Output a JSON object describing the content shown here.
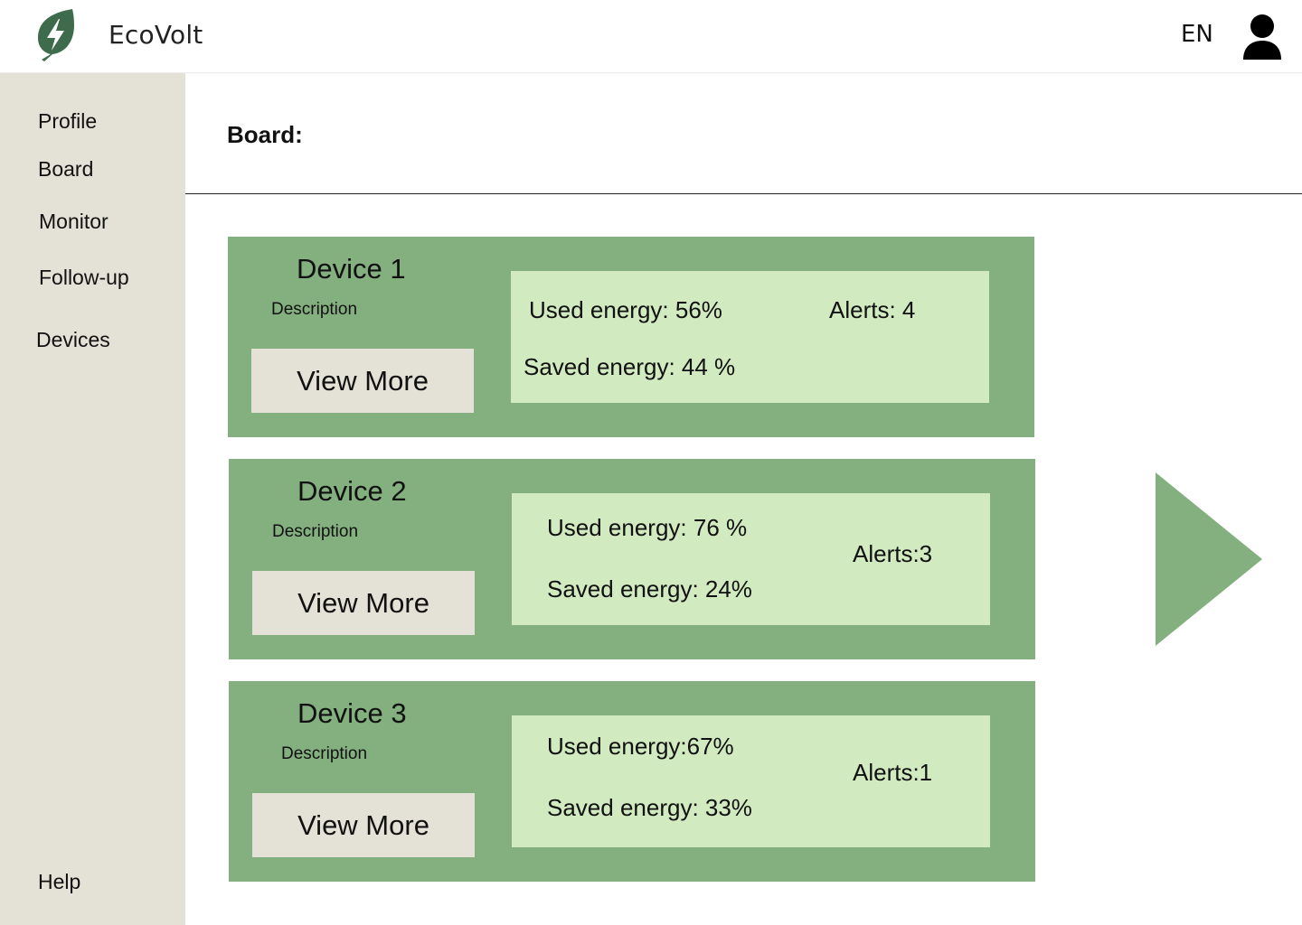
{
  "header": {
    "brand": "EcoVolt",
    "language": "EN",
    "logo_icon": "leaf-bolt-icon",
    "user_icon": "user-icon"
  },
  "sidebar": {
    "items": [
      {
        "label": "Profile"
      },
      {
        "label": "Board"
      },
      {
        "label": "Monitor"
      },
      {
        "label": "Follow-up"
      },
      {
        "label": "Devices"
      }
    ],
    "help": "Help"
  },
  "main": {
    "title": "Board:",
    "devices": [
      {
        "name": "Device 1",
        "description": "Description",
        "button": "View More",
        "used_energy": "Used energy: 56%",
        "saved_energy": "Saved energy: 44 %",
        "alerts": "Alerts: 4"
      },
      {
        "name": "Device 2",
        "description": "Description",
        "button": "View More",
        "used_energy": "Used energy: 76 %",
        "saved_energy": "Saved energy: 24%",
        "alerts": "Alerts:3"
      },
      {
        "name": "Device 3",
        "description": "Description",
        "button": "View More",
        "used_energy": "Used energy:67%",
        "saved_energy": "Saved energy: 33%",
        "alerts": "Alerts:1"
      }
    ],
    "next_icon": "next-arrow-icon"
  },
  "colors": {
    "card": "#84b07f",
    "stats_panel": "#d2eabf",
    "sidebar": "#e4e2d6",
    "logo": "#3e6b4c"
  }
}
